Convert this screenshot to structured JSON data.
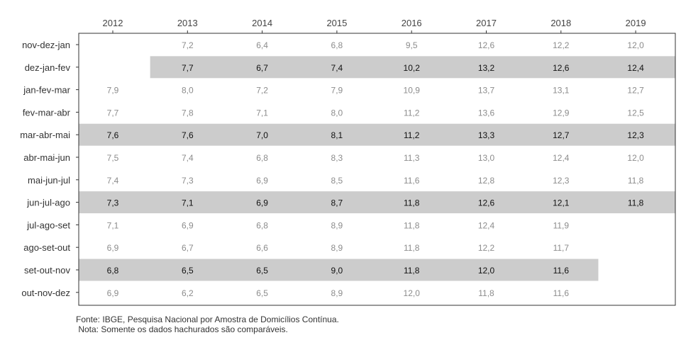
{
  "chart_data": {
    "type": "table",
    "columns": [
      "2012",
      "2013",
      "2014",
      "2015",
      "2016",
      "2017",
      "2018",
      "2019"
    ],
    "rows": [
      {
        "label": "nov-dez-jan",
        "highlight": false,
        "values": [
          null,
          "7,2",
          "6,4",
          "6,8",
          "9,5",
          "12,6",
          "12,2",
          "12,0"
        ]
      },
      {
        "label": "dez-jan-fev",
        "highlight": true,
        "values": [
          null,
          "7,7",
          "6,7",
          "7,4",
          "10,2",
          "13,2",
          "12,6",
          "12,4"
        ]
      },
      {
        "label": "jan-fev-mar",
        "highlight": false,
        "values": [
          "7,9",
          "8,0",
          "7,2",
          "7,9",
          "10,9",
          "13,7",
          "13,1",
          "12,7"
        ]
      },
      {
        "label": "fev-mar-abr",
        "highlight": false,
        "values": [
          "7,7",
          "7,8",
          "7,1",
          "8,0",
          "11,2",
          "13,6",
          "12,9",
          "12,5"
        ]
      },
      {
        "label": "mar-abr-mai",
        "highlight": true,
        "values": [
          "7,6",
          "7,6",
          "7,0",
          "8,1",
          "11,2",
          "13,3",
          "12,7",
          "12,3"
        ]
      },
      {
        "label": "abr-mai-jun",
        "highlight": false,
        "values": [
          "7,5",
          "7,4",
          "6,8",
          "8,3",
          "11,3",
          "13,0",
          "12,4",
          "12,0"
        ]
      },
      {
        "label": "mai-jun-jul",
        "highlight": false,
        "values": [
          "7,4",
          "7,3",
          "6,9",
          "8,5",
          "11,6",
          "12,8",
          "12,3",
          "11,8"
        ]
      },
      {
        "label": "jun-jul-ago",
        "highlight": true,
        "values": [
          "7,3",
          "7,1",
          "6,9",
          "8,7",
          "11,8",
          "12,6",
          "12,1",
          "11,8"
        ]
      },
      {
        "label": "jul-ago-set",
        "highlight": false,
        "values": [
          "7,1",
          "6,9",
          "6,8",
          "8,9",
          "11,8",
          "12,4",
          "11,9",
          null
        ]
      },
      {
        "label": "ago-set-out",
        "highlight": false,
        "values": [
          "6,9",
          "6,7",
          "6,6",
          "8,9",
          "11,8",
          "12,2",
          "11,7",
          null
        ]
      },
      {
        "label": "set-out-nov",
        "highlight": true,
        "values": [
          "6,8",
          "6,5",
          "6,5",
          "9,0",
          "11,8",
          "12,0",
          "11,6",
          null
        ]
      },
      {
        "label": "out-nov-dez",
        "highlight": false,
        "values": [
          "6,9",
          "6,2",
          "6,5",
          "8,9",
          "12,0",
          "11,8",
          "11,6",
          null
        ]
      }
    ],
    "colors": {
      "highlight_band": "#cccccc",
      "highlight_text": "#111111",
      "normal_text": "#8c8c8c"
    }
  },
  "footnotes": {
    "source": "Fonte: IBGE, Pesquisa Nacional por Amostra de Domicílios Contínua.",
    "note": " Nota: Somente os dados hachurados são comparáveis."
  }
}
